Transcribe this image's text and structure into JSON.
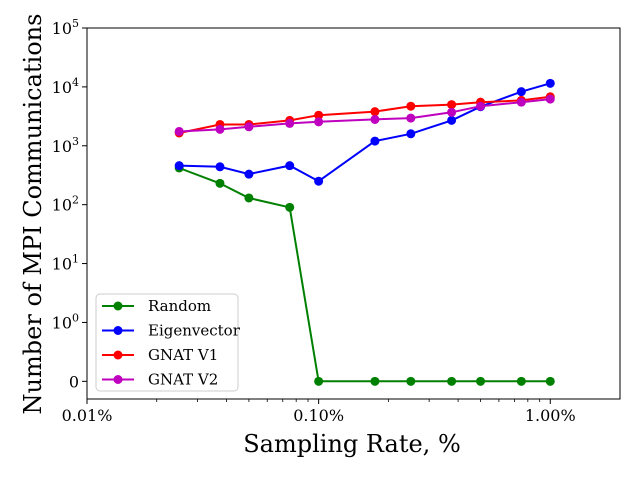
{
  "chart_data": {
    "type": "line",
    "title": "",
    "xlabel": "Sampling Rate, %",
    "ylabel": "Number of MPI Communications",
    "x_scale": "log",
    "y_scale": "symlog",
    "xlim": [
      0.01,
      2.0
    ],
    "ylim": [
      -0.3,
      100000
    ],
    "x_ticks": [
      0.01,
      0.1,
      1.0
    ],
    "x_tick_labels": [
      "0.01%",
      "0.10%",
      "1.00%"
    ],
    "y_ticks": [
      0,
      1,
      10,
      100,
      1000,
      10000,
      100000
    ],
    "y_tick_labels": [
      {
        "base": "0",
        "exp": ""
      },
      {
        "base": "10",
        "exp": "0"
      },
      {
        "base": "10",
        "exp": "1"
      },
      {
        "base": "10",
        "exp": "2"
      },
      {
        "base": "10",
        "exp": "3"
      },
      {
        "base": "10",
        "exp": "4"
      },
      {
        "base": "10",
        "exp": "5"
      }
    ],
    "grid": false,
    "legend_position": "lower-left",
    "series": [
      {
        "name": "Random",
        "color": "#008000",
        "x": [
          0.025,
          0.0375,
          0.05,
          0.075,
          0.1,
          0.175,
          0.25,
          0.375,
          0.5,
          0.75,
          1.0
        ],
        "y": [
          420,
          230,
          130,
          90,
          0,
          0,
          0,
          0,
          0,
          0,
          0
        ]
      },
      {
        "name": "Eigenvector",
        "color": "#0000ff",
        "x": [
          0.025,
          0.0375,
          0.05,
          0.075,
          0.1,
          0.175,
          0.25,
          0.375,
          0.5,
          0.75,
          1.0
        ],
        "y": [
          460,
          440,
          330,
          460,
          250,
          1200,
          1600,
          2700,
          4600,
          8300,
          11500
        ]
      },
      {
        "name": "GNAT V1",
        "color": "#ff0000",
        "x": [
          0.025,
          0.0375,
          0.05,
          0.075,
          0.1,
          0.175,
          0.25,
          0.375,
          0.5,
          0.75,
          1.0
        ],
        "y": [
          1650,
          2300,
          2300,
          2700,
          3300,
          3800,
          4700,
          5000,
          5500,
          5900,
          6800
        ]
      },
      {
        "name": "GNAT V2",
        "color": "#bf00bf",
        "x": [
          0.025,
          0.0375,
          0.05,
          0.075,
          0.1,
          0.175,
          0.25,
          0.375,
          0.5,
          0.75,
          1.0
        ],
        "y": [
          1750,
          1900,
          2100,
          2400,
          2550,
          2800,
          2950,
          3700,
          4700,
          5500,
          6200
        ]
      }
    ]
  }
}
